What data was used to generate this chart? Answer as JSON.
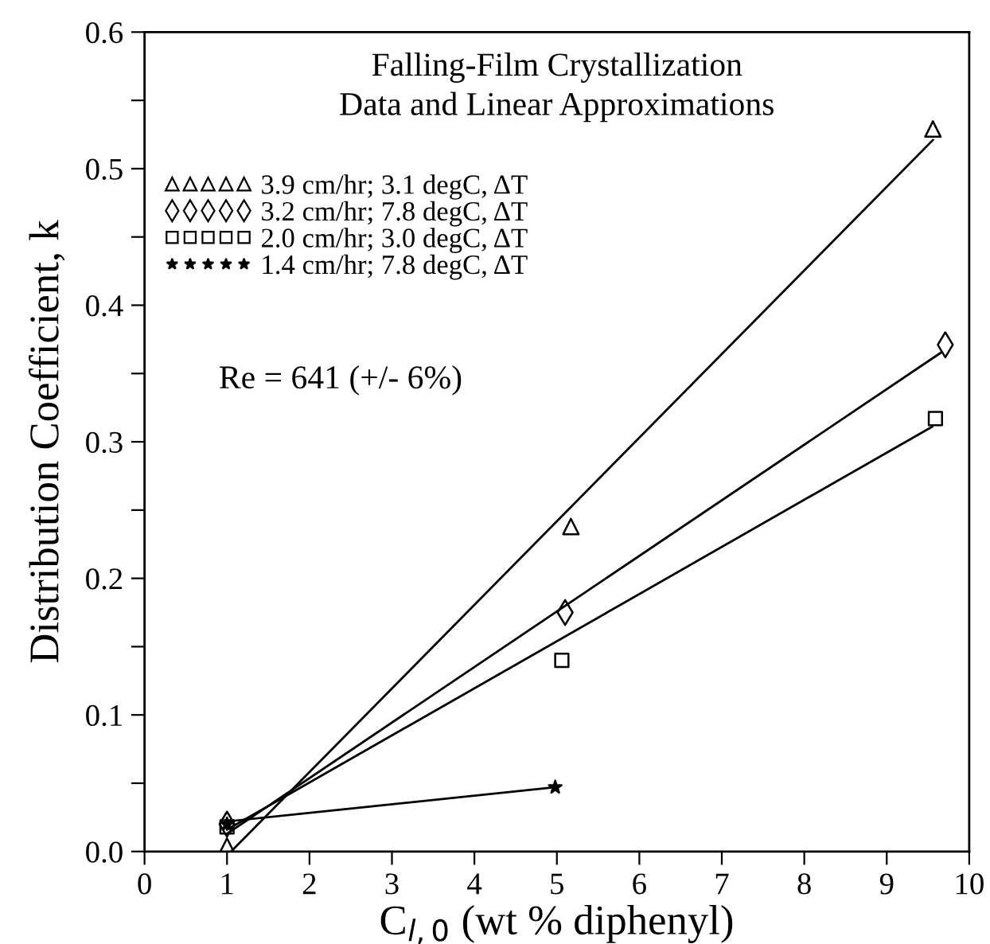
{
  "chart_data": {
    "type": "scatter",
    "title": "Falling-Film Crystallization\nData and Linear Approximations",
    "xlabel": "C$_{l,0}$ (wt % diphenyl)",
    "ylabel": "Distribution Coefficient, k",
    "annotations": [
      "Re = 641 (+/- 6%)"
    ],
    "xlim": [
      0,
      10
    ],
    "xticks": [
      0,
      1,
      2,
      3,
      4,
      5,
      6,
      7,
      8,
      9,
      10
    ],
    "ylim": [
      0,
      0.6
    ],
    "yticks": [
      {
        "value": 0,
        "label": "0.0"
      },
      0.1,
      0.2,
      0.3,
      0.4,
      0.5,
      0.6,
      {
        "value": 0.05,
        "label": null
      },
      {
        "value": 0.15,
        "label": null
      },
      {
        "value": 0.25,
        "label": null
      },
      {
        "value": 0.35,
        "label": null
      },
      {
        "value": 0.45,
        "label": null
      },
      {
        "value": 0.55,
        "label": null
      }
    ],
    "grid": false,
    "legend": "top left",
    "series": [
      {
        "name": "3.9 cm/hr; 3.1 degC, ΔT",
        "marker": "triangle",
        "color": "#000000",
        "x": [
          1.0,
          5.17,
          9.56
        ],
        "values": [
          0.004,
          0.238,
          0.529
        ]
      },
      {
        "name": "3.2 cm/hr; 7.8 degC, ΔT",
        "marker": "diamond",
        "color": "#000000",
        "x": [
          1.0,
          5.1,
          9.71
        ],
        "values": [
          0.02,
          0.175,
          0.371
        ]
      },
      {
        "name": "2.0 cm/hr; 3.0 degC, ΔT",
        "marker": "square",
        "color": "#000000",
        "x": [
          1.0,
          5.06,
          9.59
        ],
        "values": [
          0.018,
          0.14,
          0.317
        ]
      },
      {
        "name": "1.4 cm/hr; 7.8 degC, ΔT",
        "marker": "star",
        "color": "#000000",
        "x": [
          1.0,
          4.98
        ],
        "values": [
          0.02,
          0.047
        ]
      },
      {
        "type": "line",
        "marker": "none",
        "line_style": "solid",
        "color": "#000000",
        "x": [
          1.05,
          9.56
        ],
        "values": [
          0.0,
          0.521
        ]
      },
      {
        "type": "line",
        "marker": "none",
        "line_style": "solid",
        "color": "#000000",
        "x": [
          1.0,
          9.65
        ],
        "values": [
          0.013,
          0.365
        ]
      },
      {
        "type": "line",
        "marker": "none",
        "line_style": "solid",
        "color": "#000000",
        "x": [
          1.0,
          9.55
        ],
        "values": [
          0.016,
          0.311
        ]
      },
      {
        "type": "line",
        "marker": "none",
        "line_style": "solid",
        "color": "#000000",
        "x": [
          1.0,
          4.98
        ],
        "values": [
          0.022,
          0.047
        ]
      }
    ]
  }
}
